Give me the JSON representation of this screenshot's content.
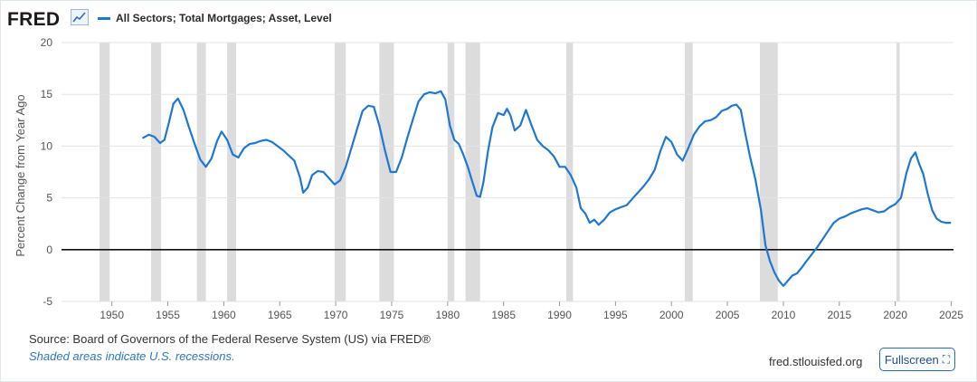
{
  "header": {
    "brand": "FRED",
    "legend_label": "All Sectors; Total Mortgages; Asset, Level"
  },
  "footer": {
    "source": "Source: Board of Governors of the Federal Reserve System (US) via FRED®",
    "recession_note": "Shaded areas indicate U.S. recessions.",
    "site": "fred.stlouisfed.org",
    "fullscreen_label": "Fullscreen",
    "fullscreen_icon": "⛶"
  },
  "colors": {
    "line": "#1f77d4",
    "recession": "#dcdcdc",
    "grid": "#e3e3e3",
    "zero_line": "#111111"
  },
  "chart_data": {
    "type": "line",
    "title": "",
    "xlabel": "",
    "ylabel": "Percent Change from Year Ago",
    "xlim": [
      1945.5,
      2025.2
    ],
    "ylim": [
      -5,
      20
    ],
    "yticks": [
      -5,
      0,
      5,
      10,
      15,
      20
    ],
    "xticks": [
      1950,
      1955,
      1960,
      1965,
      1970,
      1975,
      1980,
      1985,
      1990,
      1995,
      2000,
      2005,
      2010,
      2015,
      2020,
      2025
    ],
    "grid": true,
    "recessions": [
      [
        1948.9,
        1949.8
      ],
      [
        1953.5,
        1954.4
      ],
      [
        1957.6,
        1958.4
      ],
      [
        1960.3,
        1961.1
      ],
      [
        1969.9,
        1970.9
      ],
      [
        1973.9,
        1975.2
      ],
      [
        1980.0,
        1980.6
      ],
      [
        1981.6,
        1982.9
      ],
      [
        1990.6,
        1991.2
      ],
      [
        2001.2,
        2001.9
      ],
      [
        2007.9,
        2009.5
      ],
      [
        2020.1,
        2020.4
      ]
    ],
    "series": [
      {
        "name": "All Sectors; Total Mortgages; Asset, Level",
        "x": [
          1952.8,
          1953.3,
          1953.8,
          1954.3,
          1954.7,
          1955.1,
          1955.5,
          1955.9,
          1956.4,
          1956.9,
          1957.4,
          1957.9,
          1958.4,
          1958.9,
          1959.4,
          1959.8,
          1960.3,
          1960.8,
          1961.3,
          1961.8,
          1962.3,
          1962.8,
          1963.3,
          1963.8,
          1964.3,
          1964.8,
          1965.3,
          1965.8,
          1966.3,
          1966.8,
          1967.1,
          1967.5,
          1967.9,
          1968.4,
          1968.9,
          1969.4,
          1969.9,
          1970.4,
          1970.9,
          1971.4,
          1971.9,
          1972.4,
          1972.9,
          1973.4,
          1973.9,
          1974.4,
          1974.9,
          1975.4,
          1975.9,
          1976.4,
          1976.9,
          1977.4,
          1977.9,
          1978.4,
          1978.9,
          1979.4,
          1979.8,
          1980.2,
          1980.6,
          1981.0,
          1981.4,
          1981.8,
          1982.2,
          1982.6,
          1982.9,
          1983.2,
          1983.6,
          1984.0,
          1984.5,
          1985.0,
          1985.3,
          1985.6,
          1986.0,
          1986.5,
          1987.0,
          1987.5,
          1988.0,
          1988.5,
          1989.0,
          1989.5,
          1990.0,
          1990.5,
          1991.0,
          1991.5,
          1991.9,
          1992.3,
          1992.7,
          1993.1,
          1993.5,
          1994.0,
          1994.5,
          1995.0,
          1995.5,
          1996.0,
          1996.5,
          1997.0,
          1997.5,
          1998.0,
          1998.5,
          1999.0,
          1999.5,
          2000.0,
          2000.5,
          2001.0,
          2001.5,
          2002.0,
          2002.5,
          2003.0,
          2003.5,
          2004.0,
          2004.5,
          2005.0,
          2005.4,
          2005.8,
          2006.2,
          2006.6,
          2007.0,
          2007.5,
          2008.0,
          2008.4,
          2008.8,
          2009.2,
          2009.6,
          2010.0,
          2010.4,
          2010.8,
          2011.2,
          2011.6,
          2012.0,
          2012.5,
          2013.0,
          2013.5,
          2014.0,
          2014.5,
          2015.0,
          2015.5,
          2016.0,
          2016.5,
          2017.0,
          2017.5,
          2018.0,
          2018.5,
          2019.0,
          2019.5,
          2020.0,
          2020.5,
          2021.0,
          2021.4,
          2021.8,
          2022.1,
          2022.5,
          2022.9,
          2023.3,
          2023.7,
          2024.1,
          2024.5,
          2024.9
        ],
        "values": [
          10.8,
          11.1,
          10.9,
          10.3,
          10.6,
          12.3,
          14.1,
          14.6,
          13.5,
          11.8,
          10.2,
          8.7,
          8.0,
          8.8,
          10.5,
          11.4,
          10.6,
          9.2,
          8.9,
          9.8,
          10.2,
          10.3,
          10.5,
          10.6,
          10.4,
          10.0,
          9.6,
          9.1,
          8.6,
          7.0,
          5.5,
          6.0,
          7.2,
          7.6,
          7.5,
          6.9,
          6.3,
          6.7,
          8.0,
          9.8,
          11.6,
          13.4,
          13.9,
          13.8,
          12.0,
          9.6,
          7.5,
          7.5,
          8.9,
          10.8,
          12.6,
          14.3,
          15.0,
          15.2,
          15.1,
          15.3,
          14.5,
          12.0,
          10.6,
          10.2,
          9.2,
          8.0,
          6.6,
          5.2,
          5.1,
          6.5,
          9.5,
          11.8,
          13.2,
          13.0,
          13.6,
          13.0,
          11.5,
          12.0,
          13.5,
          12.0,
          10.6,
          10.0,
          9.6,
          9.0,
          8.0,
          8.0,
          7.2,
          6.0,
          4.0,
          3.5,
          2.6,
          2.9,
          2.4,
          2.9,
          3.6,
          3.9,
          4.1,
          4.3,
          4.9,
          5.5,
          6.1,
          6.8,
          7.7,
          9.5,
          10.9,
          10.4,
          9.2,
          8.6,
          9.8,
          11.1,
          11.9,
          12.4,
          12.5,
          12.8,
          13.4,
          13.6,
          13.9,
          14.0,
          13.5,
          11.2,
          9.1,
          6.8,
          3.8,
          0.4,
          -1.1,
          -2.2,
          -3.0,
          -3.5,
          -3.0,
          -2.5,
          -2.3,
          -1.8,
          -1.2,
          -0.5,
          0.2,
          1.0,
          1.8,
          2.6,
          3.0,
          3.2,
          3.5,
          3.7,
          3.9,
          4.0,
          3.8,
          3.6,
          3.7,
          4.1,
          4.4,
          5.0,
          7.4,
          8.8,
          9.4,
          8.4,
          7.3,
          5.4,
          3.8,
          3.0,
          2.7,
          2.6,
          2.6
        ]
      }
    ]
  }
}
